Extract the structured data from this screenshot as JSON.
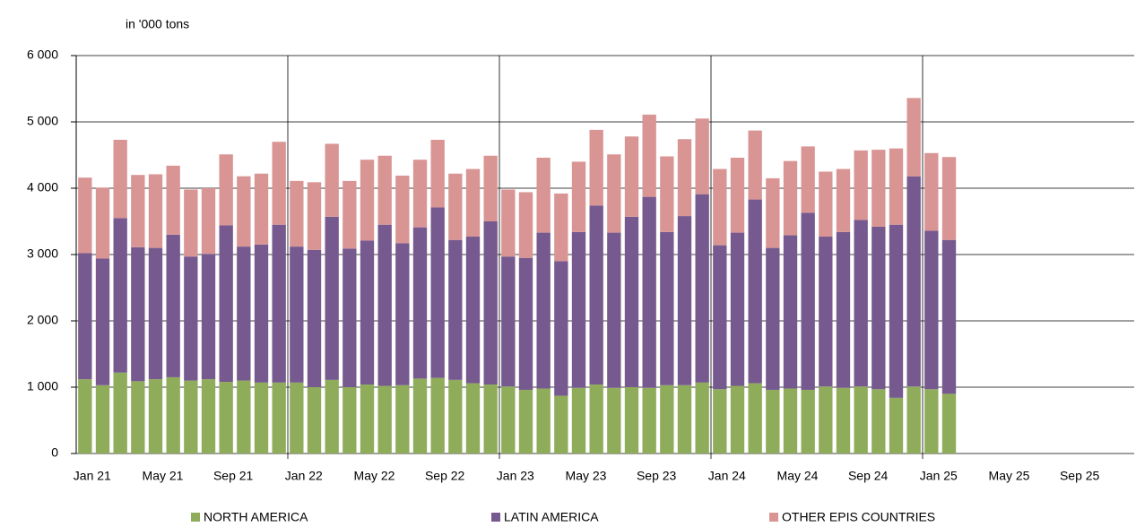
{
  "chart_data": {
    "type": "stacked-bar",
    "y_label": "in '000 tons",
    "categories": [
      "Jan 21",
      null,
      null,
      null,
      "May 21",
      null,
      null,
      null,
      "Sep 21",
      null,
      null,
      null,
      "Jan 22",
      null,
      null,
      null,
      "May 22",
      null,
      null,
      null,
      "Sep 22",
      null,
      null,
      null,
      "Jan 23",
      null,
      null,
      null,
      "May 23",
      null,
      null,
      null,
      "Sep 23",
      null,
      null,
      null,
      "Jan 24",
      null,
      null,
      null,
      "May 24",
      null,
      null,
      null,
      "Sep 24",
      null,
      null,
      null,
      "Jan 25",
      null,
      null,
      null,
      "May 25",
      null,
      null,
      null,
      "Sep 25",
      null,
      null,
      null
    ],
    "series": [
      {
        "name": "NORTH AMERICA",
        "color": "#8fac5a",
        "values": [
          1120,
          1030,
          1220,
          1090,
          1120,
          1150,
          1100,
          1120,
          1080,
          1100,
          1070,
          1070,
          1070,
          1000,
          1110,
          1000,
          1040,
          1020,
          1030,
          1130,
          1140,
          1110,
          1060,
          1040,
          1010,
          960,
          980,
          870,
          990,
          1040,
          990,
          1000,
          990,
          1030,
          1030,
          1070,
          970,
          1020,
          1060,
          960,
          980,
          960,
          1010,
          990,
          1010,
          970,
          840,
          1010,
          970,
          900,
          null,
          null,
          null,
          null,
          null,
          null,
          null,
          null,
          null,
          null
        ]
      },
      {
        "name": "LATIN AMERICA",
        "color": "#76598f",
        "values": [
          1900,
          1910,
          2330,
          2020,
          1980,
          2150,
          1870,
          1890,
          2360,
          2020,
          2080,
          2380,
          2050,
          2070,
          2460,
          2090,
          2170,
          2430,
          2140,
          2280,
          2570,
          2110,
          2210,
          2460,
          1960,
          1990,
          2350,
          2030,
          2350,
          2700,
          2340,
          2570,
          2880,
          2310,
          2550,
          2840,
          2170,
          2310,
          2770,
          2140,
          2310,
          2670,
          2260,
          2350,
          2510,
          2450,
          2610,
          3170,
          2390,
          2320,
          null,
          null,
          null,
          null,
          null,
          null,
          null,
          null,
          null,
          null
        ]
      },
      {
        "name": "OTHER EPIS COUNTRIES",
        "color": "#d99594",
        "values": [
          1140,
          1070,
          1180,
          1090,
          1110,
          1040,
          1010,
          990,
          1070,
          1060,
          1070,
          1250,
          990,
          1020,
          1100,
          1020,
          1220,
          1040,
          1020,
          1020,
          1020,
          1000,
          1020,
          990,
          1010,
          990,
          1130,
          1020,
          1060,
          1140,
          1180,
          1210,
          1240,
          1140,
          1160,
          1140,
          1150,
          1130,
          1040,
          1050,
          1120,
          1000,
          980,
          950,
          1050,
          1160,
          1150,
          1180,
          1170,
          1250,
          null,
          null,
          null,
          null,
          null,
          null,
          null,
          null,
          null,
          null
        ]
      }
    ],
    "ylim": [
      0,
      6000
    ],
    "yticks": [
      0,
      {
        "value": 1000,
        "label": "1 000"
      },
      {
        "value": 2000,
        "label": "2 000"
      },
      {
        "value": 3000,
        "label": "3 000"
      },
      {
        "value": 4000,
        "label": "4 000"
      },
      {
        "value": 5000,
        "label": "5 000"
      },
      {
        "value": 6000,
        "label": "6 000"
      }
    ],
    "grid": true,
    "legend": "bottom"
  }
}
